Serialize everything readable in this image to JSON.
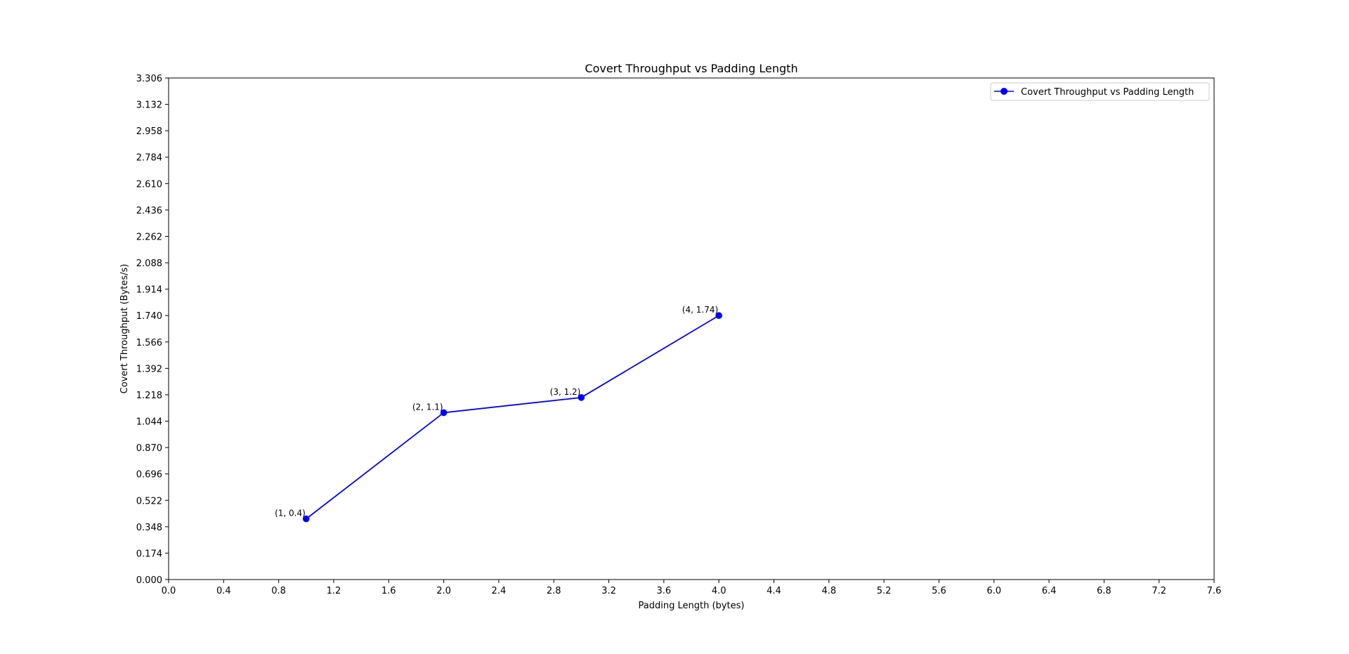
{
  "chart_data": {
    "type": "line",
    "title": "Covert Throughput vs Padding Length",
    "xlabel": "Padding Length (bytes)",
    "ylabel": "Covert Throughput (Bytes/s)",
    "xlim": [
      0.0,
      7.6
    ],
    "ylim": [
      0.0,
      3.306
    ],
    "x_ticks": [
      "0.0",
      "0.4",
      "0.8",
      "1.2",
      "1.6",
      "2.0",
      "2.4",
      "2.8",
      "3.2",
      "3.6",
      "4.0",
      "4.4",
      "4.8",
      "5.2",
      "5.6",
      "6.0",
      "6.4",
      "6.8",
      "7.2",
      "7.6"
    ],
    "y_ticks": [
      "0.000",
      "0.174",
      "0.348",
      "0.522",
      "0.696",
      "0.870",
      "1.044",
      "1.218",
      "1.392",
      "1.566",
      "1.740",
      "1.914",
      "2.088",
      "2.262",
      "2.436",
      "2.610",
      "2.784",
      "2.958",
      "3.132",
      "3.306"
    ],
    "grid": false,
    "legend_position": "top-right",
    "series": [
      {
        "name": "Covert Throughput vs Padding Length",
        "color": "#0000ff",
        "marker": "circle",
        "x": [
          1,
          2,
          3,
          4
        ],
        "y": [
          0.4,
          1.1,
          1.2,
          1.74
        ],
        "labels": [
          "(1, 0.4)",
          "(2, 1.1)",
          "(3, 1.2)",
          "(4, 1.74)"
        ]
      }
    ]
  }
}
